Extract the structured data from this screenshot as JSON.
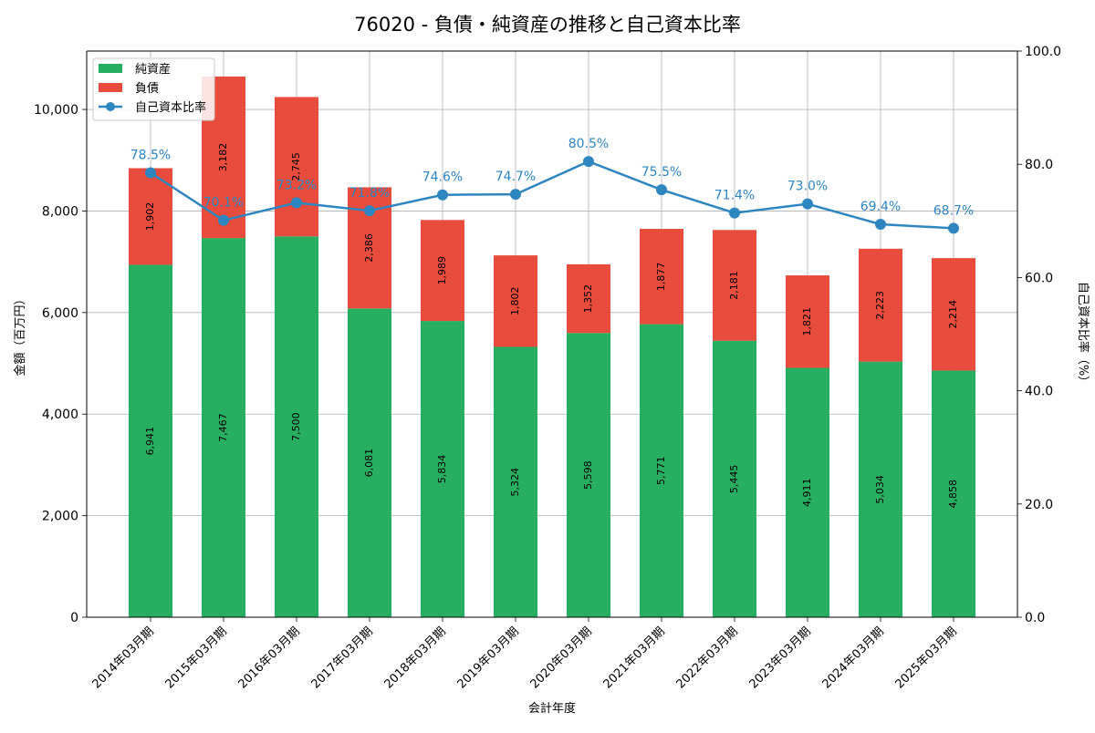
{
  "chart_data": {
    "type": "bar",
    "title": "76020 - 負債・純資産の推移と自己資本比率",
    "xlabel": "会計年度",
    "ylabel": "金額（百万円）",
    "y2label": "自己資本比率（%）",
    "ylim": [
      0,
      11150
    ],
    "y2lim": [
      0,
      100
    ],
    "yticks": [
      "0",
      "2,000",
      "4,000",
      "6,000",
      "8,000",
      "10,000"
    ],
    "y2ticks": [
      "0.0",
      "20.0",
      "40.0",
      "60.0",
      "80.0",
      "100.0"
    ],
    "grid": true,
    "legend_position": "top-left",
    "stacked": true,
    "categories": [
      "2014年03月期",
      "2015年03月期",
      "2016年03月期",
      "2017年03月期",
      "2018年03月期",
      "2019年03月期",
      "2020年03月期",
      "2021年03月期",
      "2022年03月期",
      "2023年03月期",
      "2024年03月期",
      "2025年03月期"
    ],
    "series": [
      {
        "name": "純資産",
        "color": "#27ae60",
        "values": [
          6941,
          7467,
          7500,
          6081,
          5834,
          5324,
          5598,
          5771,
          5445,
          4911,
          5034,
          4858
        ],
        "labels": [
          "6,941",
          "7,467",
          "7,500",
          "6,081",
          "5,834",
          "5,324",
          "5,598",
          "5,771",
          "5,445",
          "4,911",
          "5,034",
          "4,858"
        ]
      },
      {
        "name": "負債",
        "color": "#e74c3c",
        "values": [
          1902,
          3182,
          2745,
          2386,
          1989,
          1802,
          1352,
          1877,
          2181,
          1821,
          2223,
          2214
        ],
        "labels": [
          "1,902",
          "3,182",
          "2,745",
          "2,386",
          "1,989",
          "1,802",
          "1,352",
          "1,877",
          "2,181",
          "1,821",
          "2,223",
          "2,214"
        ]
      },
      {
        "name": "自己資本比率",
        "color": "#2e86c1",
        "type": "line",
        "axis": "right",
        "values": [
          78.5,
          70.1,
          73.2,
          71.8,
          74.6,
          74.7,
          80.5,
          75.5,
          71.4,
          73.0,
          69.4,
          68.7
        ],
        "labels": [
          "78.5%",
          "70.1%",
          "73.2%",
          "71.8%",
          "74.6%",
          "74.7%",
          "80.5%",
          "75.5%",
          "71.4%",
          "73.0%",
          "69.4%",
          "68.7%"
        ]
      }
    ]
  }
}
